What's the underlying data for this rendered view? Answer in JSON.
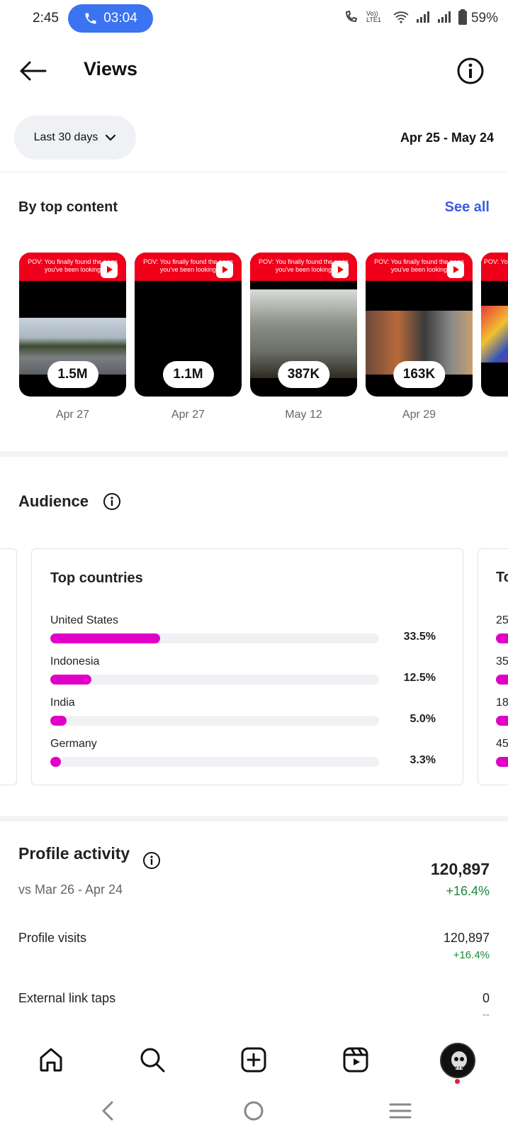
{
  "status_bar": {
    "time": "2:45",
    "call_timer": "03:04",
    "network_label": "Vo)) LTE1",
    "battery_pct": "59%"
  },
  "header": {
    "title": "Views"
  },
  "range": {
    "selector_label": "Last 30 days",
    "date_range": "Apr 25 - May 24"
  },
  "top_content": {
    "title": "By top content",
    "see_all": "See all",
    "items": [
      {
        "caption": "POV: You finally found the page you've been looking",
        "views": "1.5M",
        "date": "Apr 27"
      },
      {
        "caption": "POV: You finally found the page you've been looking",
        "views": "1.1M",
        "date": "Apr 27"
      },
      {
        "caption": "POV: You finally found the page you've been looking",
        "views": "387K",
        "date": "May 12"
      },
      {
        "caption": "POV: You finally found the page you've been looking",
        "views": "163K",
        "date": "Apr 29"
      },
      {
        "caption": "POV: You",
        "views": "",
        "date": ""
      }
    ]
  },
  "audience": {
    "title": "Audience",
    "top_countries": {
      "title": "Top countries",
      "rows": [
        {
          "name": "United States",
          "pct_label": "33.5%",
          "pct": 33.5
        },
        {
          "name": "Indonesia",
          "pct_label": "12.5%",
          "pct": 12.5
        },
        {
          "name": "India",
          "pct_label": "5.0%",
          "pct": 5.0
        },
        {
          "name": "Germany",
          "pct_label": "3.3%",
          "pct": 3.3
        }
      ]
    },
    "next_card_peek": {
      "title": "To",
      "rows": [
        "25",
        "35",
        "18",
        "45"
      ]
    }
  },
  "profile_activity": {
    "title": "Profile activity",
    "compare": "vs Mar 26 - Apr 24",
    "total": "120,897",
    "total_change": "+16.4%",
    "metrics": [
      {
        "label": "Profile visits",
        "value": "120,897",
        "change": "+16.4%"
      },
      {
        "label": "External link taps",
        "value": "0",
        "change": "--"
      }
    ]
  },
  "bottom_nav": {
    "items": [
      "home-icon",
      "search-icon",
      "create-icon",
      "reels-icon",
      "profile-avatar"
    ]
  },
  "colors": {
    "accent_blue": "#3d5ce0",
    "bar_magenta": "#e000c8",
    "positive_green": "#1a8a3a",
    "call_pill": "#3b73f0"
  }
}
